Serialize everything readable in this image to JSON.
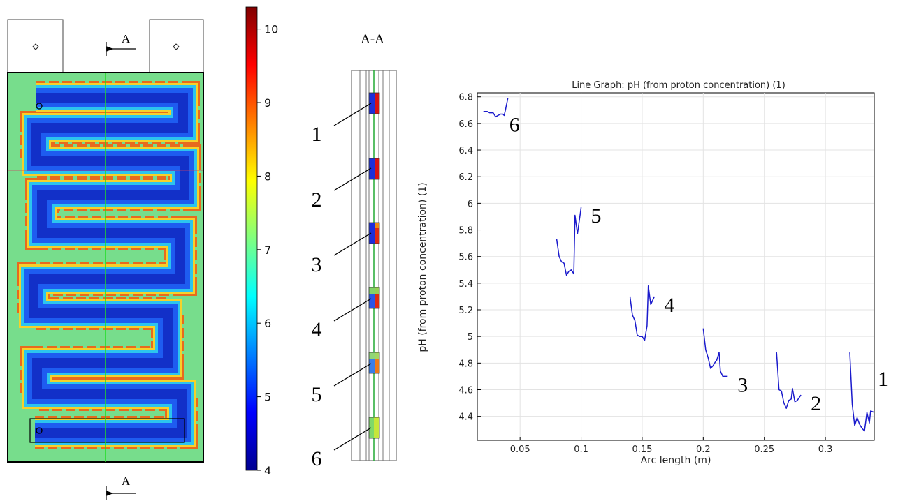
{
  "section_marker": "A",
  "section_title": "A-A",
  "colorbar": {
    "ticks": [
      "10",
      "9",
      "8",
      "7",
      "6",
      "5",
      "4"
    ],
    "tick_values": [
      10,
      9,
      8,
      7,
      6,
      5,
      4
    ],
    "range": [
      4,
      10.3
    ]
  },
  "section_callouts": [
    "1",
    "2",
    "3",
    "4",
    "5",
    "6"
  ],
  "chart_data": {
    "type": "line",
    "title": "Line Graph: pH (from proton concentration) (1)",
    "xlabel": "Arc length (m)",
    "ylabel": "pH (from proton concentration) (1)",
    "xlim": [
      0.015,
      0.34
    ],
    "ylim": [
      4.22,
      6.83
    ],
    "x_ticks": [
      0.05,
      0.1,
      0.15,
      0.2,
      0.25,
      0.3
    ],
    "x_tick_labels": [
      "0.05",
      "0.1",
      "0.15",
      "0.2",
      "0.25",
      "0.3"
    ],
    "y_ticks": [
      4.4,
      4.6,
      4.8,
      5,
      5.2,
      5.4,
      5.6,
      5.8,
      6,
      6.2,
      6.4,
      6.6,
      6.8
    ],
    "y_tick_labels": [
      "4.4",
      "4.6",
      "4.8",
      "5",
      "5.2",
      "5.4",
      "5.6",
      "5.8",
      "6",
      "6.2",
      "6.4",
      "6.6",
      "6.8"
    ],
    "grid": true,
    "line_color": "#1a1acc",
    "series": [
      {
        "label": "6",
        "points": [
          [
            0.02,
            6.69
          ],
          [
            0.023,
            6.69
          ],
          [
            0.025,
            6.68
          ],
          [
            0.028,
            6.68
          ],
          [
            0.03,
            6.65
          ],
          [
            0.032,
            6.66
          ],
          [
            0.034,
            6.67
          ],
          [
            0.036,
            6.67
          ],
          [
            0.037,
            6.66
          ],
          [
            0.038,
            6.7
          ],
          [
            0.04,
            6.79
          ]
        ]
      },
      {
        "label": "5",
        "points": [
          [
            0.08,
            5.73
          ],
          [
            0.082,
            5.6
          ],
          [
            0.084,
            5.56
          ],
          [
            0.086,
            5.55
          ],
          [
            0.088,
            5.46
          ],
          [
            0.09,
            5.49
          ],
          [
            0.092,
            5.5
          ],
          [
            0.094,
            5.47
          ],
          [
            0.095,
            5.91
          ],
          [
            0.097,
            5.77
          ],
          [
            0.1,
            5.97
          ]
        ]
      },
      {
        "label": "4",
        "points": [
          [
            0.14,
            5.3
          ],
          [
            0.142,
            5.16
          ],
          [
            0.144,
            5.12
          ],
          [
            0.146,
            5.01
          ],
          [
            0.148,
            5.0
          ],
          [
            0.15,
            5.0
          ],
          [
            0.152,
            4.97
          ],
          [
            0.154,
            5.08
          ],
          [
            0.155,
            5.38
          ],
          [
            0.157,
            5.24
          ],
          [
            0.16,
            5.3
          ]
        ]
      },
      {
        "label": "3",
        "points": [
          [
            0.2,
            5.06
          ],
          [
            0.202,
            4.9
          ],
          [
            0.204,
            4.84
          ],
          [
            0.206,
            4.76
          ],
          [
            0.208,
            4.78
          ],
          [
            0.21,
            4.81
          ],
          [
            0.211,
            4.82
          ],
          [
            0.213,
            4.88
          ],
          [
            0.214,
            4.74
          ],
          [
            0.216,
            4.7
          ],
          [
            0.22,
            4.7
          ]
        ]
      },
      {
        "label": "2",
        "points": [
          [
            0.26,
            4.88
          ],
          [
            0.262,
            4.6
          ],
          [
            0.264,
            4.59
          ],
          [
            0.266,
            4.5
          ],
          [
            0.268,
            4.46
          ],
          [
            0.27,
            4.52
          ],
          [
            0.272,
            4.53
          ],
          [
            0.273,
            4.61
          ],
          [
            0.275,
            4.51
          ],
          [
            0.277,
            4.52
          ],
          [
            0.28,
            4.56
          ]
        ]
      },
      {
        "label": "1",
        "points": [
          [
            0.32,
            4.88
          ],
          [
            0.322,
            4.49
          ],
          [
            0.324,
            4.33
          ],
          [
            0.326,
            4.39
          ],
          [
            0.328,
            4.34
          ],
          [
            0.33,
            4.31
          ],
          [
            0.332,
            4.29
          ],
          [
            0.333,
            4.36
          ],
          [
            0.334,
            4.43
          ],
          [
            0.336,
            4.35
          ],
          [
            0.337,
            4.44
          ],
          [
            0.34,
            4.43
          ]
        ]
      }
    ]
  }
}
